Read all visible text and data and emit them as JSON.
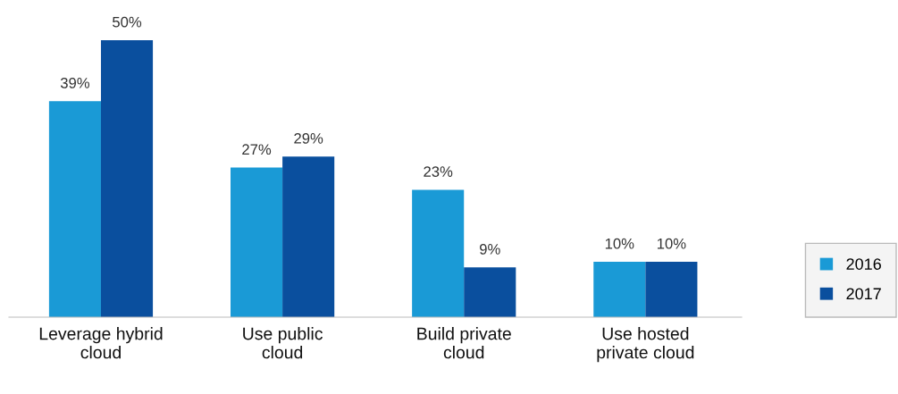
{
  "chart_data": {
    "type": "bar",
    "categories": [
      "Leverage hybrid\ncloud",
      "Use public\ncloud",
      "Build private\ncloud",
      "Use hosted\nprivate cloud"
    ],
    "series": [
      {
        "name": "2016",
        "color": "#1a9ad6",
        "values": [
          39,
          27,
          23,
          10
        ],
        "value_labels": [
          "39%",
          "27%",
          "23%",
          "10%"
        ]
      },
      {
        "name": "2017",
        "color": "#0a4f9e",
        "values": [
          50,
          29,
          9,
          10
        ],
        "value_labels": [
          "50%",
          "29%",
          "9%",
          "10%"
        ]
      }
    ],
    "legend": "right",
    "grid": false
  }
}
